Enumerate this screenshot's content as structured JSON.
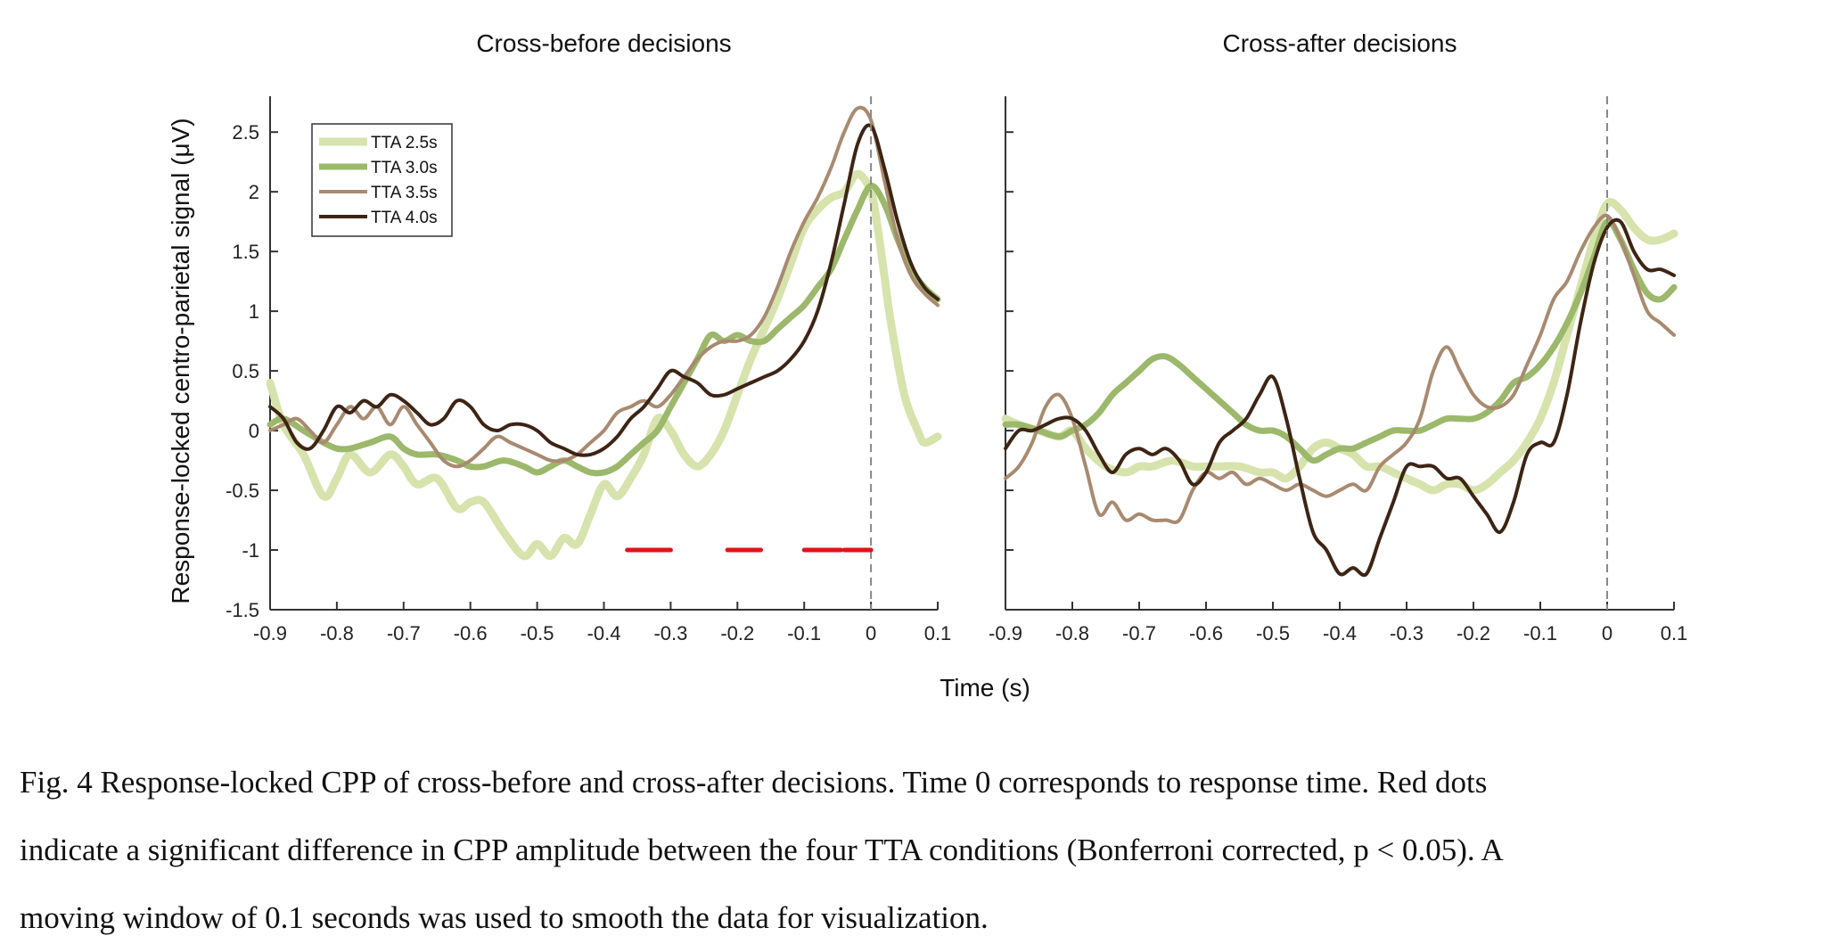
{
  "figure_caption": {
    "lines": [
      "Fig. 4 Response-locked CPP of cross-before and cross-after decisions. Time 0 corresponds to response time. Red dots",
      "indicate a significant difference in CPP amplitude between the four TTA conditions (Bonferroni corrected, p < 0.05). A",
      "moving window of 0.1 seconds was used to smooth the data for visualization."
    ]
  },
  "shared": {
    "xlabel": "Time (s)",
    "ylabel": "Response-locked centro-parietal signal (μV)"
  },
  "chart_data": [
    {
      "type": "line",
      "title": "Cross-before decisions",
      "xlim": [
        -0.9,
        0.1
      ],
      "ylim": [
        -1.5,
        2.8
      ],
      "xticks": [
        "-0.9",
        "-0.8",
        "-0.7",
        "-0.6",
        "-0.5",
        "-0.4",
        "-0.3",
        "-0.2",
        "-0.1",
        "0",
        "0.1"
      ],
      "yticks": [
        "-1.5",
        "-1",
        "-0.5",
        "0",
        "0.5",
        "1",
        "1.5",
        "2",
        "2.5"
      ],
      "legend_position": "top-left",
      "vertical_reference_line": 0,
      "significance_y": -1.0,
      "significance_intervals": [
        [
          -0.365,
          -0.3
        ],
        [
          -0.215,
          -0.165
        ],
        [
          -0.1,
          -0.045
        ],
        [
          -0.04,
          0.0
        ]
      ],
      "series": [
        {
          "name": "TTA 2.5s",
          "color": "#d6e3ac",
          "width": 9,
          "x": [
            -0.9,
            -0.88,
            -0.85,
            -0.82,
            -0.8,
            -0.78,
            -0.75,
            -0.72,
            -0.7,
            -0.68,
            -0.65,
            -0.62,
            -0.6,
            -0.58,
            -0.55,
            -0.52,
            -0.5,
            -0.48,
            -0.46,
            -0.44,
            -0.42,
            -0.4,
            -0.38,
            -0.36,
            -0.34,
            -0.32,
            -0.3,
            -0.28,
            -0.26,
            -0.24,
            -0.22,
            -0.2,
            -0.18,
            -0.16,
            -0.14,
            -0.12,
            -0.1,
            -0.08,
            -0.06,
            -0.04,
            -0.02,
            0,
            0.01,
            0.02,
            0.03,
            0.05,
            0.07,
            0.08,
            0.1
          ],
          "y": [
            0.4,
            0.05,
            -0.2,
            -0.55,
            -0.4,
            -0.2,
            -0.35,
            -0.2,
            -0.3,
            -0.45,
            -0.4,
            -0.65,
            -0.6,
            -0.6,
            -0.85,
            -1.05,
            -0.95,
            -1.05,
            -0.9,
            -0.95,
            -0.7,
            -0.45,
            -0.55,
            -0.4,
            -0.2,
            0.1,
            0.0,
            -0.2,
            -0.3,
            -0.2,
            0.0,
            0.3,
            0.6,
            0.85,
            1.1,
            1.4,
            1.7,
            1.85,
            1.95,
            2.0,
            2.15,
            2.0,
            1.7,
            1.3,
            0.9,
            0.3,
            0.0,
            -0.1,
            -0.05
          ]
        },
        {
          "name": "TTA 3.0s",
          "color": "#9bb86b",
          "width": 7,
          "x": [
            -0.9,
            -0.88,
            -0.85,
            -0.82,
            -0.8,
            -0.78,
            -0.75,
            -0.72,
            -0.7,
            -0.68,
            -0.65,
            -0.62,
            -0.6,
            -0.58,
            -0.55,
            -0.52,
            -0.5,
            -0.48,
            -0.46,
            -0.44,
            -0.42,
            -0.4,
            -0.38,
            -0.36,
            -0.34,
            -0.32,
            -0.3,
            -0.28,
            -0.26,
            -0.24,
            -0.22,
            -0.2,
            -0.18,
            -0.16,
            -0.14,
            -0.12,
            -0.1,
            -0.08,
            -0.06,
            -0.04,
            -0.02,
            0,
            0.02,
            0.04,
            0.06,
            0.08,
            0.1
          ],
          "y": [
            0.05,
            0.1,
            0.0,
            -0.1,
            -0.15,
            -0.15,
            -0.1,
            -0.05,
            -0.15,
            -0.2,
            -0.2,
            -0.25,
            -0.3,
            -0.3,
            -0.25,
            -0.3,
            -0.35,
            -0.3,
            -0.25,
            -0.3,
            -0.35,
            -0.35,
            -0.3,
            -0.2,
            -0.1,
            0.0,
            0.2,
            0.4,
            0.6,
            0.8,
            0.75,
            0.8,
            0.75,
            0.75,
            0.85,
            0.95,
            1.05,
            1.2,
            1.35,
            1.6,
            1.85,
            2.05,
            1.9,
            1.6,
            1.35,
            1.2,
            1.1
          ]
        },
        {
          "name": "TTA 3.5s",
          "color": "#a88a70",
          "width": 4,
          "x": [
            -0.9,
            -0.88,
            -0.86,
            -0.84,
            -0.82,
            -0.8,
            -0.78,
            -0.76,
            -0.74,
            -0.72,
            -0.7,
            -0.68,
            -0.66,
            -0.64,
            -0.62,
            -0.6,
            -0.58,
            -0.56,
            -0.54,
            -0.52,
            -0.5,
            -0.48,
            -0.46,
            -0.44,
            -0.42,
            -0.4,
            -0.38,
            -0.36,
            -0.34,
            -0.32,
            -0.3,
            -0.28,
            -0.26,
            -0.24,
            -0.22,
            -0.2,
            -0.18,
            -0.16,
            -0.14,
            -0.12,
            -0.1,
            -0.08,
            -0.06,
            -0.04,
            -0.02,
            0,
            0.02,
            0.04,
            0.06,
            0.08,
            0.1
          ],
          "y": [
            0.0,
            0.05,
            0.1,
            0.0,
            -0.1,
            0.05,
            0.2,
            0.1,
            0.2,
            0.05,
            0.2,
            0.05,
            -0.1,
            -0.25,
            -0.3,
            -0.25,
            -0.15,
            -0.05,
            -0.1,
            -0.15,
            -0.2,
            -0.25,
            -0.25,
            -0.2,
            -0.1,
            0.0,
            0.15,
            0.2,
            0.25,
            0.2,
            0.3,
            0.45,
            0.6,
            0.7,
            0.75,
            0.75,
            0.8,
            0.95,
            1.2,
            1.5,
            1.75,
            1.95,
            2.2,
            2.5,
            2.7,
            2.6,
            2.1,
            1.6,
            1.3,
            1.15,
            1.05
          ]
        },
        {
          "name": "TTA 4.0s",
          "color": "#3d2414",
          "width": 4,
          "x": [
            -0.9,
            -0.88,
            -0.86,
            -0.84,
            -0.82,
            -0.8,
            -0.78,
            -0.76,
            -0.74,
            -0.72,
            -0.7,
            -0.68,
            -0.66,
            -0.64,
            -0.62,
            -0.6,
            -0.58,
            -0.56,
            -0.54,
            -0.52,
            -0.5,
            -0.48,
            -0.46,
            -0.44,
            -0.42,
            -0.4,
            -0.38,
            -0.36,
            -0.34,
            -0.32,
            -0.3,
            -0.28,
            -0.26,
            -0.24,
            -0.22,
            -0.2,
            -0.18,
            -0.16,
            -0.14,
            -0.12,
            -0.1,
            -0.08,
            -0.06,
            -0.04,
            -0.02,
            0,
            0.02,
            0.04,
            0.06,
            0.08,
            0.1
          ],
          "y": [
            0.2,
            0.1,
            -0.1,
            -0.15,
            0.0,
            0.2,
            0.15,
            0.25,
            0.2,
            0.3,
            0.25,
            0.15,
            0.05,
            0.1,
            0.25,
            0.2,
            0.05,
            0.0,
            0.05,
            0.05,
            0.0,
            -0.1,
            -0.15,
            -0.2,
            -0.2,
            -0.15,
            -0.05,
            0.1,
            0.2,
            0.35,
            0.5,
            0.45,
            0.4,
            0.3,
            0.3,
            0.35,
            0.4,
            0.45,
            0.5,
            0.6,
            0.75,
            1.0,
            1.4,
            1.9,
            2.4,
            2.55,
            2.2,
            1.75,
            1.4,
            1.2,
            1.1
          ]
        }
      ]
    },
    {
      "type": "line",
      "title": "Cross-after decisions",
      "xlim": [
        -0.9,
        0.1
      ],
      "ylim": [
        -1.5,
        2.8
      ],
      "xticks": [
        "-0.9",
        "-0.8",
        "-0.7",
        "-0.6",
        "-0.5",
        "-0.4",
        "-0.3",
        "-0.2",
        "-0.1",
        "0",
        "0.1"
      ],
      "vertical_reference_line": 0,
      "series": [
        {
          "name": "TTA 2.5s",
          "color": "#d6e3ac",
          "width": 9,
          "x": [
            -0.9,
            -0.88,
            -0.85,
            -0.82,
            -0.8,
            -0.78,
            -0.75,
            -0.72,
            -0.7,
            -0.68,
            -0.65,
            -0.62,
            -0.6,
            -0.58,
            -0.55,
            -0.52,
            -0.5,
            -0.48,
            -0.46,
            -0.44,
            -0.42,
            -0.4,
            -0.38,
            -0.36,
            -0.34,
            -0.32,
            -0.3,
            -0.28,
            -0.26,
            -0.24,
            -0.22,
            -0.2,
            -0.18,
            -0.16,
            -0.14,
            -0.12,
            -0.1,
            -0.08,
            -0.06,
            -0.04,
            -0.02,
            0,
            0.02,
            0.04,
            0.06,
            0.08,
            0.1
          ],
          "y": [
            0.1,
            0.05,
            0.0,
            -0.05,
            0.0,
            -0.15,
            -0.3,
            -0.35,
            -0.3,
            -0.3,
            -0.25,
            -0.3,
            -0.3,
            -0.3,
            -0.3,
            -0.35,
            -0.35,
            -0.4,
            -0.3,
            -0.15,
            -0.1,
            -0.15,
            -0.2,
            -0.3,
            -0.3,
            -0.35,
            -0.4,
            -0.45,
            -0.5,
            -0.45,
            -0.45,
            -0.5,
            -0.45,
            -0.35,
            -0.25,
            -0.1,
            0.1,
            0.4,
            0.8,
            1.2,
            1.6,
            1.9,
            1.85,
            1.7,
            1.6,
            1.6,
            1.65
          ]
        },
        {
          "name": "TTA 3.0s",
          "color": "#9bb86b",
          "width": 7,
          "x": [
            -0.9,
            -0.88,
            -0.85,
            -0.82,
            -0.8,
            -0.78,
            -0.76,
            -0.74,
            -0.72,
            -0.7,
            -0.68,
            -0.66,
            -0.64,
            -0.62,
            -0.6,
            -0.58,
            -0.56,
            -0.54,
            -0.52,
            -0.5,
            -0.48,
            -0.46,
            -0.44,
            -0.42,
            -0.4,
            -0.38,
            -0.36,
            -0.34,
            -0.32,
            -0.3,
            -0.28,
            -0.26,
            -0.24,
            -0.22,
            -0.2,
            -0.18,
            -0.16,
            -0.14,
            -0.12,
            -0.1,
            -0.08,
            -0.06,
            -0.04,
            -0.02,
            0,
            0.02,
            0.04,
            0.06,
            0.08,
            0.1
          ],
          "y": [
            0.05,
            0.05,
            0.0,
            -0.05,
            0.0,
            0.05,
            0.15,
            0.3,
            0.4,
            0.5,
            0.6,
            0.62,
            0.55,
            0.45,
            0.35,
            0.25,
            0.15,
            0.05,
            0.0,
            0.0,
            -0.05,
            -0.15,
            -0.25,
            -0.2,
            -0.15,
            -0.15,
            -0.1,
            -0.05,
            0.0,
            0.0,
            0.0,
            0.05,
            0.1,
            0.1,
            0.1,
            0.15,
            0.25,
            0.4,
            0.45,
            0.55,
            0.7,
            0.9,
            1.15,
            1.45,
            1.75,
            1.6,
            1.35,
            1.15,
            1.1,
            1.2
          ]
        },
        {
          "name": "TTA 3.5s",
          "color": "#a88a70",
          "width": 4,
          "x": [
            -0.9,
            -0.88,
            -0.86,
            -0.84,
            -0.82,
            -0.8,
            -0.78,
            -0.76,
            -0.74,
            -0.72,
            -0.7,
            -0.68,
            -0.66,
            -0.64,
            -0.62,
            -0.6,
            -0.58,
            -0.56,
            -0.54,
            -0.52,
            -0.5,
            -0.48,
            -0.46,
            -0.44,
            -0.42,
            -0.4,
            -0.38,
            -0.36,
            -0.34,
            -0.32,
            -0.3,
            -0.28,
            -0.26,
            -0.24,
            -0.22,
            -0.2,
            -0.18,
            -0.16,
            -0.14,
            -0.12,
            -0.1,
            -0.08,
            -0.06,
            -0.04,
            -0.02,
            0,
            0.02,
            0.04,
            0.06,
            0.08,
            0.1
          ],
          "y": [
            -0.4,
            -0.3,
            -0.1,
            0.2,
            0.3,
            0.1,
            -0.3,
            -0.7,
            -0.6,
            -0.75,
            -0.7,
            -0.75,
            -0.75,
            -0.75,
            -0.5,
            -0.35,
            -0.4,
            -0.35,
            -0.45,
            -0.4,
            -0.45,
            -0.5,
            -0.45,
            -0.5,
            -0.55,
            -0.5,
            -0.45,
            -0.5,
            -0.3,
            -0.2,
            -0.1,
            0.1,
            0.5,
            0.7,
            0.5,
            0.3,
            0.2,
            0.2,
            0.3,
            0.55,
            0.8,
            1.1,
            1.25,
            1.5,
            1.7,
            1.8,
            1.6,
            1.3,
            1.0,
            0.9,
            0.8
          ]
        },
        {
          "name": "TTA 4.0s",
          "color": "#3d2414",
          "width": 4,
          "x": [
            -0.9,
            -0.88,
            -0.86,
            -0.84,
            -0.82,
            -0.8,
            -0.78,
            -0.76,
            -0.74,
            -0.72,
            -0.7,
            -0.68,
            -0.66,
            -0.64,
            -0.62,
            -0.6,
            -0.58,
            -0.56,
            -0.54,
            -0.52,
            -0.5,
            -0.48,
            -0.46,
            -0.44,
            -0.42,
            -0.4,
            -0.38,
            -0.36,
            -0.34,
            -0.32,
            -0.3,
            -0.28,
            -0.26,
            -0.24,
            -0.22,
            -0.2,
            -0.18,
            -0.16,
            -0.14,
            -0.12,
            -0.1,
            -0.08,
            -0.06,
            -0.04,
            -0.02,
            0,
            0.02,
            0.04,
            0.06,
            0.08,
            0.1
          ],
          "y": [
            -0.15,
            0.0,
            0.0,
            0.05,
            0.1,
            0.1,
            0.0,
            -0.2,
            -0.35,
            -0.2,
            -0.15,
            -0.2,
            -0.15,
            -0.25,
            -0.45,
            -0.35,
            -0.1,
            0.0,
            0.1,
            0.3,
            0.45,
            0.1,
            -0.4,
            -0.85,
            -1.0,
            -1.2,
            -1.15,
            -1.2,
            -0.9,
            -0.6,
            -0.3,
            -0.3,
            -0.3,
            -0.4,
            -0.4,
            -0.55,
            -0.7,
            -0.85,
            -0.6,
            -0.2,
            -0.1,
            -0.1,
            0.3,
            0.9,
            1.4,
            1.7,
            1.75,
            1.5,
            1.35,
            1.35,
            1.3
          ]
        }
      ]
    }
  ]
}
